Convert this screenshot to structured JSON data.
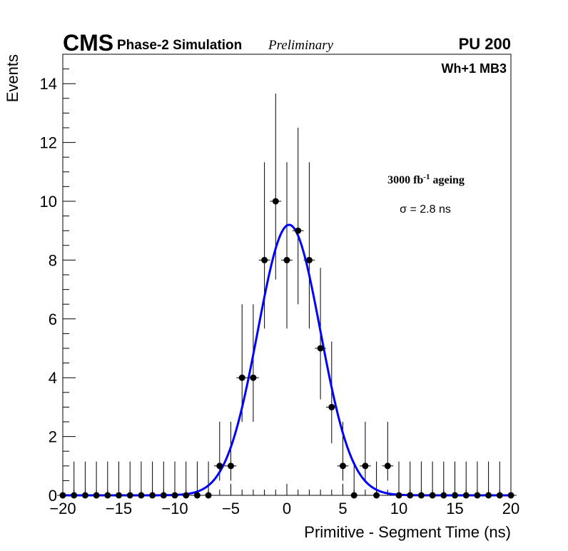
{
  "header": {
    "experiment": "CMS",
    "subtitle": "Phase-2 Simulation",
    "status": "Preliminary",
    "pileup": "PU 200"
  },
  "chart_data": {
    "type": "scatter",
    "title": "",
    "xlabel": "Primitive - Segment Time (ns)",
    "ylabel": "Events",
    "xlim": [
      -20,
      20
    ],
    "ylim": [
      0,
      15
    ],
    "x_ticks": [
      -20,
      -15,
      -10,
      -5,
      0,
      5,
      10,
      15,
      20
    ],
    "x_tick_labels": [
      "−20",
      "−15",
      "−10",
      "−5",
      "0",
      "5",
      "10",
      "15",
      "20"
    ],
    "y_ticks": [
      0,
      2,
      4,
      6,
      8,
      10,
      12,
      14
    ],
    "y_tick_labels": [
      "0",
      "2",
      "4",
      "6",
      "8",
      "10",
      "12",
      "14"
    ],
    "grid": false,
    "annotations": {
      "chamber": "Wh+1 MB3",
      "ageing_prefix": "3000 fb",
      "ageing_sup": "-1",
      "ageing_suffix": " ageing",
      "sigma": "σ = 2.8 ns"
    },
    "series": [
      {
        "name": "data",
        "style": "points with error bars",
        "color": "#000000",
        "bin_width": 1,
        "x": [
          -20,
          -19,
          -18,
          -17,
          -16,
          -15,
          -14,
          -13,
          -12,
          -11,
          -10,
          -9,
          -8,
          -7,
          -6,
          -5,
          -4,
          -3,
          -2,
          -1,
          0,
          1,
          2,
          3,
          4,
          5,
          6,
          7,
          8,
          9,
          10,
          11,
          12,
          13,
          14,
          15,
          16,
          17,
          18,
          19,
          20
        ],
        "y": [
          0,
          0,
          0,
          0,
          0,
          0,
          0,
          0,
          0,
          0,
          0,
          0,
          0,
          0,
          1,
          1,
          4,
          4,
          8,
          10,
          8,
          9,
          8,
          5,
          3,
          1,
          0,
          1,
          0,
          1,
          0,
          0,
          0,
          0,
          0,
          0,
          0,
          0,
          0,
          0,
          0
        ]
      },
      {
        "name": "gaussian fit",
        "style": "line",
        "color": "#0000ff",
        "amplitude": 9.2,
        "mean": 0.2,
        "sigma": 2.8
      }
    ]
  }
}
